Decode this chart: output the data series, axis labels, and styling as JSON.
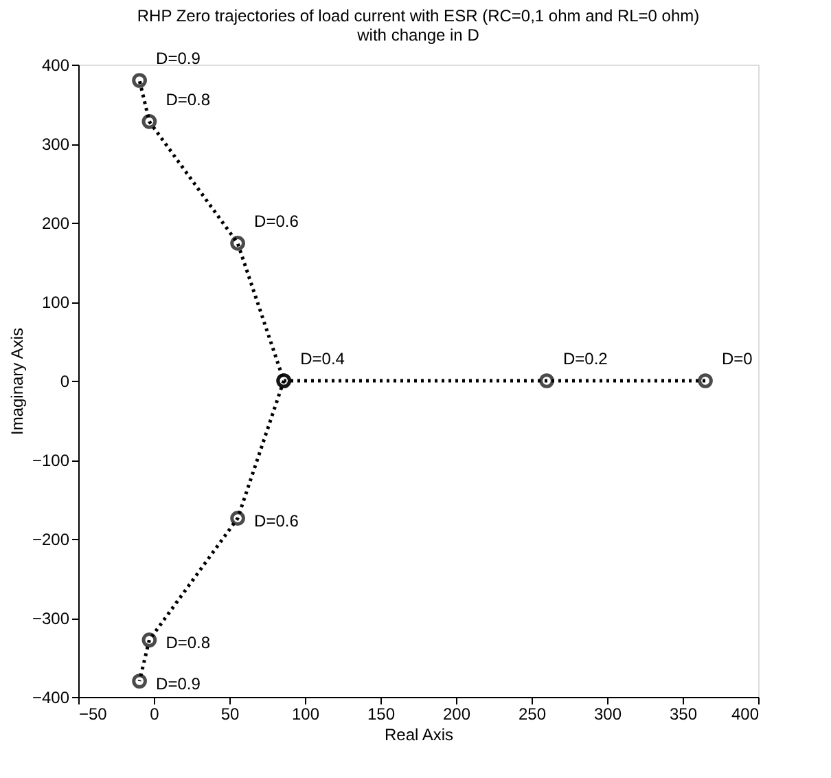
{
  "chart_data": {
    "type": "line",
    "title": [
      "RHP Zero trajectories of load current with ESR (RC=0,1 ohm and RL=0 ohm)",
      "with change in D"
    ],
    "xlabel": "Real Axis",
    "ylabel": "Imaginary Axis",
    "series": [
      {
        "color": "#000000",
        "x": [
          365,
          260,
          86,
          55.5,
          -3,
          -9.5
        ],
        "values": [
          0,
          0,
          0,
          174,
          328,
          380
        ]
      },
      {
        "color": "#000000",
        "x": [
          86,
          55.5,
          -3,
          -9.5
        ],
        "values": [
          0,
          -174,
          -328,
          -380
        ]
      }
    ],
    "xlim": [
      -50,
      400
    ],
    "xticks": [
      -50,
      0,
      50,
      100,
      150,
      200,
      250,
      300,
      350,
      400
    ],
    "ylim": [
      -400,
      400
    ],
    "yticks": [
      -400,
      -300,
      -200,
      -100,
      0,
      100,
      200,
      300,
      400
    ],
    "grid": false,
    "marker": "circle",
    "line_style": "dotted",
    "annotations": [
      {
        "text": "D=0",
        "x": 365,
        "y": 0
      },
      {
        "text": "D=0.2",
        "x": 260,
        "y": 0
      },
      {
        "text": "D=0.4",
        "x": 86,
        "y": 0
      },
      {
        "text": "D=0.6",
        "x": 55.5,
        "y": 174
      },
      {
        "text": "D=0.8",
        "x": -3,
        "y": 328
      },
      {
        "text": "D=0.9",
        "x": -9.5,
        "y": 380
      },
      {
        "text": "D=0.6",
        "x": 55.5,
        "y": -174
      },
      {
        "text": "D=0.8",
        "x": -3,
        "y": -328
      },
      {
        "text": "D=0.9",
        "x": -9.5,
        "y": -380
      }
    ]
  }
}
